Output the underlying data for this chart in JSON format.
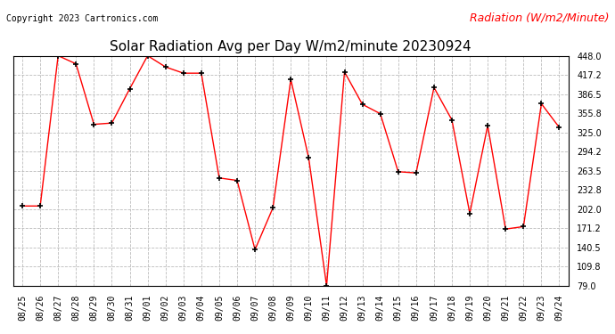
{
  "title": "Solar Radiation Avg per Day W/m2/minute 20230924",
  "copyright": "Copyright 2023 Cartronics.com",
  "ylabel": "Radiation (W/m2/Minute)",
  "dates": [
    "08/25",
    "08/26",
    "08/27",
    "08/28",
    "08/29",
    "08/30",
    "08/31",
    "09/01",
    "09/02",
    "09/03",
    "09/04",
    "09/05",
    "09/06",
    "09/07",
    "09/08",
    "09/09",
    "09/10",
    "09/11",
    "09/12",
    "09/13",
    "09/14",
    "09/15",
    "09/16",
    "09/17",
    "09/18",
    "09/19",
    "09/20",
    "09/21",
    "09/22",
    "09/23",
    "09/24"
  ],
  "values": [
    207,
    207,
    448,
    435,
    338,
    340,
    395,
    448,
    430,
    420,
    420,
    252,
    248,
    137,
    204,
    410,
    284,
    79,
    422,
    370,
    355,
    262,
    260,
    397,
    345,
    195,
    336,
    170,
    174,
    371,
    333
  ],
  "line_color": "red",
  "marker": "+",
  "marker_color": "black",
  "grid_color": "#bbbbbb",
  "bg_color": "white",
  "ylim": [
    79.0,
    448.0
  ],
  "yticks": [
    79.0,
    109.8,
    140.5,
    171.2,
    202.0,
    232.8,
    263.5,
    294.2,
    325.0,
    355.8,
    386.5,
    417.2,
    448.0
  ],
  "title_fontsize": 11,
  "copyright_fontsize": 7,
  "ylabel_fontsize": 9,
  "tick_fontsize": 7
}
